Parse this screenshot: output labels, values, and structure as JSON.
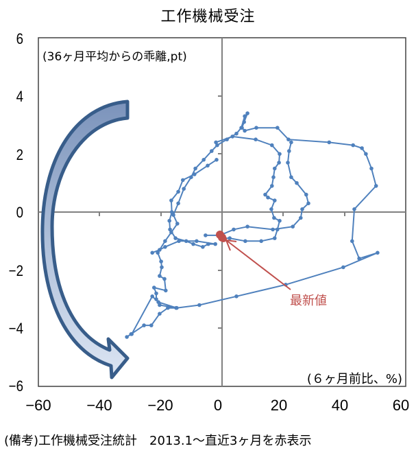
{
  "title": "工作機械受注",
  "y_unit_label": "(36ヶ月平均からの乖離,pt)",
  "x_unit_label": "(６ヶ月前比、%)",
  "annotation": "最新値",
  "note": "(備考)工作機械受注統計　2013.1～直近3ヶ月を赤表示",
  "y_ticks": [
    "6",
    "4",
    "2",
    "0",
    "−2",
    "−4",
    "−6"
  ],
  "x_ticks": [
    "−60",
    "−40",
    "−20",
    "0",
    "20",
    "40",
    "60"
  ],
  "colors": {
    "series": "#4f81bd",
    "highlight": "#c0504d",
    "arrow_stroke": "#385d8a",
    "axis": "#808080"
  },
  "chart_data": {
    "type": "scatter",
    "title": "工作機械受注",
    "xlabel": "(６ヶ月前比、%)",
    "ylabel": "(36ヶ月平均からの乖離,pt)",
    "xlim": [
      -60,
      60
    ],
    "ylim": [
      -6,
      6
    ],
    "x_ticks": [
      -60,
      -40,
      -20,
      0,
      20,
      40,
      60
    ],
    "y_ticks": [
      -6,
      -4,
      -2,
      0,
      2,
      4,
      6
    ],
    "grid": false,
    "legend": null,
    "annotations": [
      "最新値 (arrow pointing to latest red points near (0,-0.9))",
      "large curved arrow indicating counter-clockwise cycle"
    ],
    "series": [
      {
        "name": "2013.1～",
        "connected": true,
        "points": [
          [
            -31.1,
            -4.3
          ],
          [
            -29.7,
            -4.2
          ],
          [
            -25.5,
            -3.9
          ],
          [
            -23.1,
            -3.9
          ],
          [
            -20.4,
            -3.5
          ],
          [
            -17.7,
            -3.3
          ],
          [
            -15.0,
            -3.3
          ],
          [
            -20.4,
            -3.2
          ],
          [
            -21.5,
            -3.0
          ],
          [
            -21.5,
            -2.8
          ],
          [
            -22.2,
            -2.6
          ],
          [
            -18.4,
            -2.7
          ],
          [
            -18.8,
            -2.3
          ],
          [
            -20.4,
            -2.2
          ],
          [
            -19.7,
            -1.9
          ],
          [
            -19.9,
            -1.7
          ],
          [
            -21.0,
            -1.4
          ],
          [
            -18.6,
            -1.0
          ],
          [
            -16.6,
            -0.7
          ],
          [
            -14.6,
            -0.4
          ],
          [
            -15.9,
            -0.1
          ],
          [
            -14.3,
            0.3
          ],
          [
            -12.5,
            0.8
          ],
          [
            -10.1,
            1.2
          ],
          [
            -8.7,
            1.5
          ],
          [
            -6.0,
            1.8
          ],
          [
            -3.4,
            2.1
          ],
          [
            -1.6,
            2.3
          ],
          [
            1.6,
            2.5
          ],
          [
            4.7,
            2.7
          ],
          [
            6.3,
            2.9
          ],
          [
            7.4,
            3.3
          ],
          [
            8.3,
            3.4
          ],
          [
            7.2,
            3.1
          ],
          [
            6.5,
            2.9
          ],
          [
            7.4,
            2.8
          ],
          [
            11.2,
            2.9
          ],
          [
            18.1,
            2.9
          ],
          [
            21.7,
            2.5
          ],
          [
            35.0,
            2.4
          ],
          [
            42.8,
            2.3
          ],
          [
            45.7,
            2.2
          ],
          [
            47.0,
            2.0
          ],
          [
            48.8,
            1.5
          ],
          [
            50.3,
            0.9
          ],
          [
            43.2,
            0.1
          ],
          [
            42.5,
            -1.0
          ],
          [
            44.8,
            -1.6
          ],
          [
            50.8,
            -1.4
          ],
          [
            39.6,
            -1.9
          ],
          [
            20.8,
            -2.5
          ],
          [
            4.7,
            -2.9
          ],
          [
            -7.4,
            -3.2
          ],
          [
            -14.8,
            -3.3
          ],
          [
            -20.8,
            -3.1
          ],
          [
            -22.8,
            -2.9
          ],
          [
            -29.5,
            -4.2
          ]
        ]
      },
      {
        "name": "loop-right",
        "connected": true,
        "points": [
          [
            -2.0,
            2.4
          ],
          [
            3.4,
            2.6
          ],
          [
            11.0,
            2.5
          ],
          [
            16.3,
            2.3
          ],
          [
            18.8,
            2.0
          ],
          [
            18.6,
            1.7
          ],
          [
            17.2,
            1.5
          ],
          [
            16.8,
            1.2
          ],
          [
            16.3,
            0.9
          ],
          [
            14.1,
            0.6
          ],
          [
            15.0,
            0.5
          ],
          [
            17.2,
            0.4
          ],
          [
            16.1,
            0.1
          ],
          [
            17.0,
            -0.2
          ],
          [
            18.8,
            -0.3
          ],
          [
            18.1,
            -0.6
          ],
          [
            17.2,
            -0.9
          ],
          [
            12.8,
            -1.0
          ],
          [
            7.6,
            -1.0
          ],
          [
            2.5,
            -0.9
          ],
          [
            0.0,
            -0.9
          ]
        ]
      },
      {
        "name": "loop-inner",
        "connected": true,
        "points": [
          [
            22.6,
            2.4
          ],
          [
            21.9,
            2.1
          ],
          [
            21.5,
            1.7
          ],
          [
            22.6,
            1.2
          ],
          [
            24.4,
            1.0
          ],
          [
            27.5,
            0.6
          ],
          [
            28.2,
            0.3
          ],
          [
            26.2,
            0.1
          ],
          [
            25.7,
            -0.2
          ],
          [
            23.1,
            -0.5
          ],
          [
            16.6,
            -0.6
          ],
          [
            8.3,
            -0.5
          ],
          [
            3.8,
            -0.6
          ],
          [
            -0.7,
            -0.8
          ],
          [
            -5.4,
            -0.8
          ]
        ]
      },
      {
        "name": "loop-left",
        "connected": true,
        "points": [
          [
            -1.8,
            1.8
          ],
          [
            -4.7,
            1.6
          ],
          [
            -9.0,
            1.3
          ],
          [
            -12.8,
            1.1
          ],
          [
            -14.3,
            0.7
          ],
          [
            -16.6,
            0.4
          ],
          [
            -16.4,
            0.0
          ],
          [
            -17.2,
            -0.3
          ],
          [
            -17.0,
            -0.6
          ],
          [
            -15.2,
            -0.9
          ],
          [
            -11.7,
            -1.0
          ],
          [
            -9.4,
            -1.1
          ],
          [
            -6.3,
            -1.2
          ],
          [
            -4.5,
            -1.1
          ],
          [
            -2.2,
            -1.1
          ],
          [
            -8.3,
            -1.0
          ],
          [
            -14.1,
            -1.0
          ],
          [
            -18.6,
            -1.2
          ],
          [
            -20.4,
            -1.3
          ],
          [
            -22.8,
            -1.4
          ]
        ]
      },
      {
        "name": "直近3ヶ月",
        "highlight": true,
        "points": [
          [
            -0.4,
            -0.8
          ],
          [
            0.0,
            -0.9
          ],
          [
            0.4,
            -1.0
          ]
        ]
      }
    ]
  }
}
